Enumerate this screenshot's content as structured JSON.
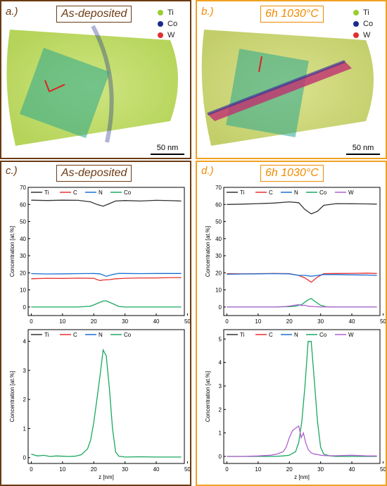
{
  "panel_a": {
    "letter": "a.)",
    "title": "As-deposited",
    "scale": "50 nm",
    "legend": [
      {
        "label": "Ti",
        "color": "#9acd32"
      },
      {
        "label": "Co",
        "color": "#1a2a8a"
      },
      {
        "label": "W",
        "color": "#e03030"
      }
    ]
  },
  "panel_b": {
    "letter": "b.)",
    "title": "6h 1030°C",
    "scale": "50 nm",
    "legend": [
      {
        "label": "Ti",
        "color": "#9acd32"
      },
      {
        "label": "Co",
        "color": "#1a2a8a"
      },
      {
        "label": "W",
        "color": "#e03030"
      }
    ]
  },
  "panel_c": {
    "letter": "c.)",
    "title": "As-deposited"
  },
  "panel_d": {
    "letter": "d.)",
    "title": "6h 1030°C"
  },
  "chart_data": [
    {
      "id": "c_top",
      "type": "line",
      "xlabel": "",
      "ylabel": "Concentration [at.%]",
      "xlim": [
        -1,
        49
      ],
      "ylim": [
        -5,
        70
      ],
      "xticks": [
        0,
        10,
        20,
        30,
        40,
        50
      ],
      "yticks": [
        0,
        10,
        20,
        30,
        40,
        50,
        60,
        70
      ],
      "series": [
        {
          "name": "Ti",
          "color": "#333333",
          "x": [
            0,
            5,
            10,
            15,
            19,
            21,
            23,
            25,
            27,
            30,
            35,
            40,
            45,
            48
          ],
          "values": [
            62.5,
            62.3,
            62.5,
            62.4,
            61.5,
            60,
            59,
            60.5,
            62,
            62.3,
            62,
            62.4,
            62.2,
            62
          ]
        },
        {
          "name": "C",
          "color": "#e83030",
          "x": [
            0,
            5,
            10,
            15,
            20,
            22,
            23,
            25,
            27,
            30,
            35,
            40,
            45,
            48
          ],
          "values": [
            16.5,
            16.8,
            16.7,
            16.9,
            16.8,
            15.5,
            15.8,
            16,
            16.5,
            16.8,
            17,
            17,
            17.2,
            17.2
          ]
        },
        {
          "name": "N",
          "color": "#1a6fd0",
          "x": [
            0,
            5,
            10,
            15,
            20,
            22,
            24,
            26,
            28,
            30,
            35,
            40,
            45,
            48
          ],
          "values": [
            19.5,
            19.3,
            19.4,
            19.5,
            19.6,
            19.4,
            18,
            19,
            19.7,
            19.6,
            19.5,
            19.6,
            19.6,
            19.6
          ]
        },
        {
          "name": "Co",
          "color": "#1aa860",
          "x": [
            0,
            5,
            10,
            15,
            19,
            21,
            23,
            24,
            26,
            28,
            30,
            35,
            40,
            45,
            48
          ],
          "values": [
            0,
            0,
            0,
            0,
            0.5,
            2,
            3.5,
            3.6,
            2,
            0.3,
            0,
            0,
            0,
            0,
            0
          ]
        }
      ]
    },
    {
      "id": "c_bot",
      "type": "line",
      "xlabel": "z [nm]",
      "ylabel": "Concentration [at.%]",
      "xlim": [
        -1,
        49
      ],
      "ylim": [
        -0.2,
        4.4
      ],
      "xticks": [
        0,
        10,
        20,
        30,
        40,
        50
      ],
      "yticks": [
        0,
        1,
        2,
        3,
        4
      ],
      "series": [
        {
          "name": "Ti",
          "color": "#333333",
          "x": [],
          "values": []
        },
        {
          "name": "C",
          "color": "#e83030",
          "x": [],
          "values": []
        },
        {
          "name": "N",
          "color": "#1a6fd0",
          "x": [],
          "values": []
        },
        {
          "name": "Co",
          "color": "#1aa860",
          "x": [
            0,
            2,
            4,
            6,
            8,
            10,
            12,
            14,
            16,
            18,
            19,
            20,
            21,
            22,
            23,
            24,
            25,
            26,
            27,
            28,
            30,
            35,
            40,
            45,
            48
          ],
          "values": [
            0.12,
            0.06,
            0.08,
            0.04,
            0.06,
            0.05,
            0.04,
            0.05,
            0.1,
            0.3,
            0.6,
            1.2,
            2,
            2.8,
            3.7,
            3.5,
            2.4,
            1,
            0.2,
            0.05,
            0.02,
            0.03,
            0.02,
            0.02,
            0.02
          ]
        }
      ]
    },
    {
      "id": "d_top",
      "type": "line",
      "xlabel": "",
      "ylabel": "Concentration [at.%]",
      "xlim": [
        -1,
        49
      ],
      "ylim": [
        -5,
        70
      ],
      "xticks": [
        0,
        10,
        20,
        30,
        40,
        50
      ],
      "yticks": [
        0,
        10,
        20,
        30,
        40,
        50,
        60,
        70
      ],
      "series": [
        {
          "name": "Ti",
          "color": "#333333",
          "x": [
            0,
            5,
            10,
            15,
            20,
            23,
            25,
            27,
            29,
            31,
            35,
            40,
            45,
            48
          ],
          "values": [
            60,
            60.2,
            60.5,
            60.8,
            61.5,
            61,
            57,
            54.5,
            56,
            59.5,
            60.5,
            60.4,
            60.3,
            60.2
          ]
        },
        {
          "name": "C",
          "color": "#e83030",
          "x": [
            0,
            5,
            10,
            15,
            20,
            23,
            25,
            27,
            29,
            31,
            35,
            40,
            45,
            48
          ],
          "values": [
            19.5,
            19.4,
            19.5,
            19.6,
            19.5,
            18.5,
            17,
            14.5,
            17.5,
            19.5,
            19.6,
            19.7,
            19.8,
            19.6
          ]
        },
        {
          "name": "N",
          "color": "#1a6fd0",
          "x": [
            0,
            5,
            10,
            15,
            20,
            23,
            25,
            27,
            29,
            31,
            35,
            40,
            45,
            48
          ],
          "values": [
            19.2,
            19.3,
            19.4,
            19.5,
            19.4,
            18.5,
            18.5,
            18,
            18.5,
            19,
            19,
            18.8,
            18.7,
            18.5
          ]
        },
        {
          "name": "Co",
          "color": "#1aa860",
          "x": [
            0,
            5,
            10,
            15,
            20,
            22,
            24,
            26,
            27,
            28,
            30,
            32,
            35,
            40,
            45,
            48
          ],
          "values": [
            0,
            0,
            0,
            0,
            0.2,
            0.5,
            1.5,
            4.2,
            5,
            3.5,
            1,
            0.1,
            0,
            0,
            0,
            0
          ]
        },
        {
          "name": "W",
          "color": "#b060d0",
          "x": [
            0,
            5,
            10,
            15,
            19,
            21,
            22,
            23,
            24,
            25,
            26,
            28,
            30,
            35,
            40,
            45,
            48
          ],
          "values": [
            0,
            0,
            0,
            0,
            0.3,
            0.8,
            1.2,
            1.3,
            0.9,
            1,
            0.5,
            0.2,
            0.05,
            0,
            0,
            0,
            0
          ]
        }
      ]
    },
    {
      "id": "d_bot",
      "type": "line",
      "xlabel": "z [nm]",
      "ylabel": "Concentration [at.%]",
      "xlim": [
        -1,
        49
      ],
      "ylim": [
        -0.3,
        5.4
      ],
      "xticks": [
        0,
        10,
        20,
        30,
        40,
        50
      ],
      "yticks": [
        0,
        1,
        2,
        3,
        4,
        5
      ],
      "series": [
        {
          "name": "Ti",
          "color": "#333333",
          "x": [],
          "values": []
        },
        {
          "name": "C",
          "color": "#e83030",
          "x": [],
          "values": []
        },
        {
          "name": "N",
          "color": "#1a6fd0",
          "x": [],
          "values": []
        },
        {
          "name": "Co",
          "color": "#1aa860",
          "x": [
            0,
            5,
            10,
            15,
            18,
            20,
            22,
            23,
            24,
            25,
            26,
            27,
            28,
            29,
            30,
            31,
            33,
            35,
            40,
            45,
            48
          ],
          "values": [
            0,
            0,
            0,
            0,
            0.02,
            0.05,
            0.2,
            0.6,
            1.5,
            3,
            4.9,
            4.9,
            3.2,
            1.5,
            0.4,
            0.1,
            0.02,
            0,
            0,
            0,
            0
          ]
        },
        {
          "name": "W",
          "color": "#b060d0",
          "x": [
            0,
            5,
            10,
            14,
            16,
            18,
            19,
            20,
            21,
            22,
            23,
            23.8,
            24.5,
            25.2,
            26,
            27,
            28,
            29,
            30,
            32,
            35,
            40,
            45,
            48
          ],
          "values": [
            0,
            0,
            0.02,
            0.05,
            0.1,
            0.2,
            0.4,
            0.8,
            1.1,
            1.2,
            1.3,
            0.8,
            1,
            0.6,
            0.3,
            0.15,
            0.1,
            0.08,
            0.05,
            0.03,
            0.03,
            0.05,
            0.02,
            0.02
          ]
        }
      ]
    }
  ]
}
